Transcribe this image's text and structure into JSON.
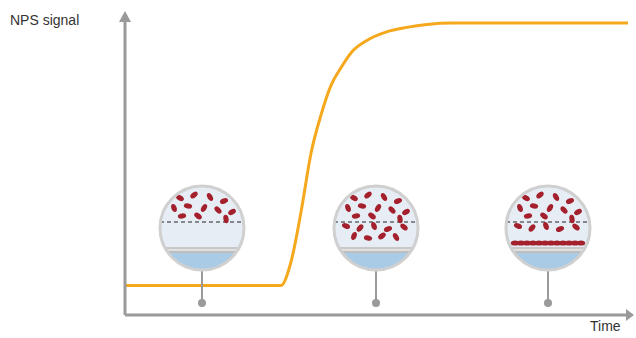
{
  "chart_data": {
    "type": "line",
    "x_label": "Time",
    "y_label": "NPS signal",
    "x": [
      0,
      10,
      20,
      30,
      31,
      33,
      35,
      37,
      39,
      41,
      43,
      45,
      48,
      52,
      56,
      60,
      65,
      70,
      80,
      90,
      100
    ],
    "values": [
      10,
      10,
      10,
      10,
      10,
      18,
      35,
      55,
      68,
      78,
      84,
      89,
      93,
      96,
      97.5,
      98.5,
      99,
      99,
      99,
      99,
      99
    ],
    "color": "#f5a81c",
    "xlim": [
      0,
      100
    ],
    "ylim": [
      0,
      100
    ],
    "tick_labels": false
  }
}
